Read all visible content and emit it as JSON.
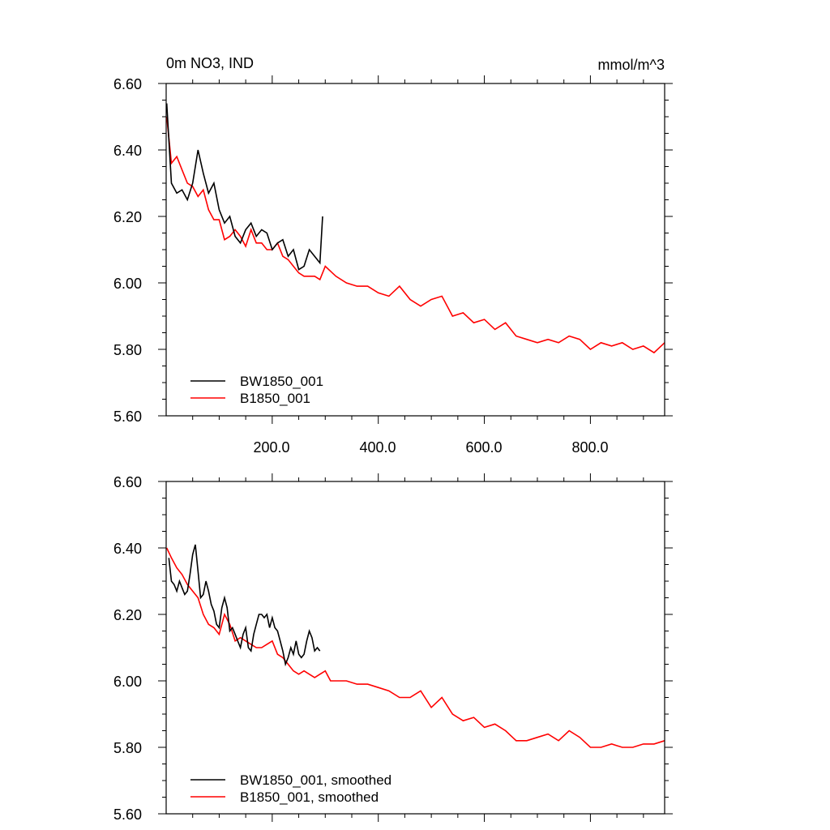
{
  "chart_data": [
    {
      "type": "line",
      "title": "0m NO3, IND",
      "units": "mmol/m^3",
      "xlim": [
        0,
        940
      ],
      "ylim": [
        5.6,
        6.6
      ],
      "xticks": [
        200,
        400,
        600,
        800
      ],
      "xtick_labels": [
        "200.0",
        "400.0",
        "600.0",
        "800.0"
      ],
      "yticks": [
        5.6,
        5.8,
        6.0,
        6.2,
        6.4,
        6.6
      ],
      "ytick_labels": [
        "5.60",
        "5.80",
        "6.00",
        "6.20",
        "6.40",
        "6.60"
      ],
      "legend_position": "bottom-left",
      "series": [
        {
          "name": "BW1850_001",
          "color": "#000000",
          "x": [
            1,
            10,
            20,
            30,
            40,
            50,
            60,
            70,
            80,
            90,
            100,
            110,
            120,
            130,
            140,
            150,
            160,
            170,
            180,
            190,
            200,
            210,
            220,
            230,
            240,
            250,
            260,
            270,
            280,
            290,
            295
          ],
          "values": [
            6.54,
            6.3,
            6.27,
            6.28,
            6.25,
            6.3,
            6.4,
            6.33,
            6.27,
            6.3,
            6.22,
            6.18,
            6.2,
            6.14,
            6.12,
            6.16,
            6.18,
            6.14,
            6.16,
            6.15,
            6.1,
            6.12,
            6.13,
            6.08,
            6.1,
            6.04,
            6.05,
            6.1,
            6.08,
            6.06,
            6.2
          ]
        },
        {
          "name": "B1850_001",
          "color": "#ff0000",
          "x": [
            1,
            10,
            20,
            30,
            40,
            50,
            60,
            70,
            80,
            90,
            100,
            110,
            120,
            130,
            140,
            150,
            160,
            170,
            180,
            190,
            200,
            210,
            220,
            230,
            240,
            250,
            260,
            270,
            280,
            290,
            300,
            320,
            340,
            360,
            380,
            400,
            420,
            440,
            460,
            480,
            500,
            520,
            540,
            560,
            580,
            600,
            620,
            640,
            660,
            680,
            700,
            720,
            740,
            760,
            780,
            800,
            820,
            840,
            860,
            880,
            900,
            920,
            940
          ],
          "values": [
            6.5,
            6.36,
            6.38,
            6.34,
            6.3,
            6.29,
            6.26,
            6.28,
            6.22,
            6.19,
            6.19,
            6.13,
            6.14,
            6.16,
            6.14,
            6.11,
            6.16,
            6.12,
            6.12,
            6.1,
            6.1,
            6.12,
            6.08,
            6.07,
            6.05,
            6.03,
            6.02,
            6.02,
            6.02,
            6.01,
            6.05,
            6.02,
            6.0,
            5.99,
            5.99,
            5.97,
            5.96,
            5.99,
            5.95,
            5.93,
            5.95,
            5.96,
            5.9,
            5.91,
            5.88,
            5.89,
            5.86,
            5.88,
            5.84,
            5.83,
            5.82,
            5.83,
            5.82,
            5.84,
            5.83,
            5.8,
            5.82,
            5.81,
            5.82,
            5.8,
            5.81,
            5.79,
            5.82
          ]
        }
      ]
    },
    {
      "type": "line",
      "title": "",
      "xlim": [
        0,
        940
      ],
      "ylim": [
        5.6,
        6.6
      ],
      "xticks": [
        200,
        400,
        600,
        800
      ],
      "yticks": [
        5.6,
        5.8,
        6.0,
        6.2,
        6.4,
        6.6
      ],
      "ytick_labels": [
        "5.60",
        "5.80",
        "6.00",
        "6.20",
        "6.40",
        "6.60"
      ],
      "legend_position": "bottom-left",
      "series": [
        {
          "name": "BW1850_001, smoothed",
          "color": "#000000",
          "x": [
            5,
            10,
            15,
            20,
            25,
            30,
            35,
            40,
            45,
            50,
            55,
            60,
            65,
            70,
            75,
            80,
            85,
            90,
            95,
            100,
            105,
            110,
            115,
            120,
            125,
            130,
            135,
            140,
            145,
            150,
            155,
            160,
            165,
            170,
            175,
            180,
            185,
            190,
            195,
            200,
            205,
            210,
            215,
            220,
            225,
            230,
            235,
            240,
            245,
            250,
            255,
            260,
            265,
            270,
            275,
            280,
            285,
            290
          ],
          "values": [
            6.37,
            6.3,
            6.29,
            6.27,
            6.3,
            6.28,
            6.26,
            6.27,
            6.32,
            6.38,
            6.41,
            6.33,
            6.25,
            6.26,
            6.3,
            6.27,
            6.23,
            6.21,
            6.17,
            6.16,
            6.22,
            6.25,
            6.22,
            6.15,
            6.16,
            6.14,
            6.12,
            6.1,
            6.14,
            6.16,
            6.1,
            6.09,
            6.14,
            6.17,
            6.2,
            6.2,
            6.19,
            6.2,
            6.16,
            6.19,
            6.16,
            6.15,
            6.12,
            6.09,
            6.05,
            6.07,
            6.1,
            6.08,
            6.12,
            6.08,
            6.07,
            6.08,
            6.12,
            6.15,
            6.13,
            6.09,
            6.1,
            6.09
          ]
        },
        {
          "name": "B1850_001, smoothed",
          "color": "#ff0000",
          "x": [
            1,
            10,
            20,
            30,
            40,
            50,
            60,
            70,
            80,
            90,
            100,
            110,
            120,
            130,
            140,
            150,
            160,
            170,
            180,
            190,
            200,
            210,
            220,
            230,
            240,
            250,
            260,
            270,
            280,
            290,
            300,
            310,
            320,
            340,
            360,
            380,
            400,
            420,
            440,
            460,
            480,
            500,
            520,
            540,
            560,
            580,
            600,
            620,
            640,
            660,
            680,
            700,
            720,
            740,
            760,
            780,
            800,
            820,
            840,
            860,
            880,
            900,
            920,
            940
          ],
          "values": [
            6.4,
            6.37,
            6.34,
            6.32,
            6.29,
            6.27,
            6.25,
            6.2,
            6.17,
            6.16,
            6.14,
            6.2,
            6.17,
            6.12,
            6.13,
            6.12,
            6.11,
            6.1,
            6.1,
            6.11,
            6.12,
            6.08,
            6.07,
            6.05,
            6.03,
            6.02,
            6.03,
            6.02,
            6.01,
            6.02,
            6.03,
            6.0,
            6.0,
            6.0,
            5.99,
            5.99,
            5.98,
            5.97,
            5.95,
            5.95,
            5.97,
            5.92,
            5.95,
            5.9,
            5.88,
            5.89,
            5.86,
            5.87,
            5.85,
            5.82,
            5.82,
            5.83,
            5.84,
            5.82,
            5.85,
            5.83,
            5.8,
            5.8,
            5.81,
            5.8,
            5.8,
            5.81,
            5.81,
            5.82
          ]
        }
      ]
    }
  ]
}
